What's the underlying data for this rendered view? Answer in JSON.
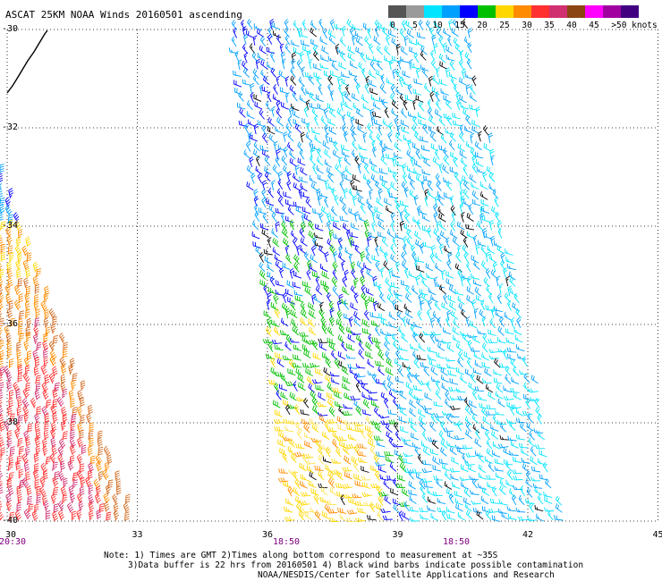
{
  "title": "ASCAT 25KM NOAA Winds 20160501 ascending",
  "legend": {
    "labels": [
      "0",
      "5",
      "10",
      "15",
      "20",
      "25",
      "30",
      "35",
      "40",
      "45",
      ">50 knots"
    ],
    "colors": [
      "#555555",
      "#9a9a9a",
      "#00e5ff",
      "#00a0ff",
      "#0000ff",
      "#00c000",
      "#ffd700",
      "#ff8c00",
      "#ff3030",
      "#d03070",
      "#8b4513",
      "#ff00ff",
      "#a000a0",
      "#400080"
    ]
  },
  "axes": {
    "y_labels": [
      "-30",
      "-32",
      "-34",
      "-36",
      "-38",
      "-40"
    ],
    "x_labels": [
      "30",
      "33",
      "36",
      "39",
      "42",
      "45"
    ],
    "time_labels": [
      "20:30",
      "18:50",
      "18:50"
    ]
  },
  "notes": [
    "Note: 1) Times are GMT 2)Times along bottom correspond to measurement at ~35S",
    "3)Data buffer is 22 hrs from 20160501 4) Black wind barbs indicate possible contamination",
    "NOAA/NESDIS/Center for Satellite Applications and Research"
  ]
}
